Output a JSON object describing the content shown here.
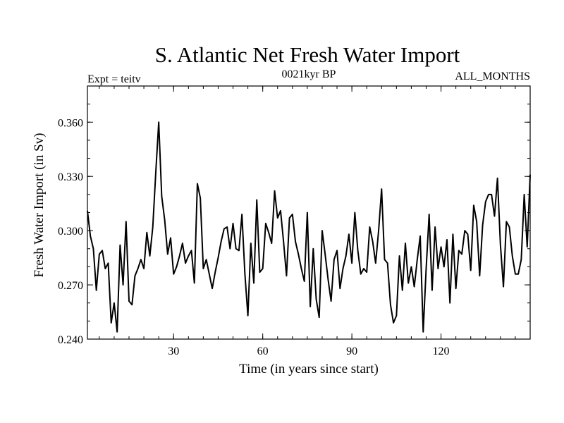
{
  "chart_data": {
    "type": "line",
    "title": "S. Atlantic Net Fresh Water Import",
    "subtitle_left": "Expt = teitv",
    "subtitle_center": "0021kyr BP",
    "subtitle_right": "ALL_MONTHS",
    "xlabel": "Time (in years since start)",
    "ylabel": "Fresh Water Import (in Sv)",
    "xlim": [
      1,
      150
    ],
    "ylim": [
      0.24,
      0.38
    ],
    "x_major_ticks": [
      30,
      60,
      90,
      120
    ],
    "x_minor_step": 5,
    "y_major_ticks": [
      0.24,
      0.27,
      0.3,
      0.33,
      0.36
    ],
    "y_tick_labels": [
      "0.240",
      "0.270",
      "0.300",
      "0.330",
      "0.360"
    ],
    "y_minor_step": 0.01,
    "grid": false,
    "series": [
      {
        "name": "Fresh water import",
        "color": "#000000",
        "x": [
          1,
          2,
          3,
          4,
          5,
          6,
          7,
          8,
          9,
          10,
          11,
          12,
          13,
          14,
          15,
          16,
          17,
          18,
          19,
          20,
          21,
          22,
          23,
          24,
          25,
          26,
          27,
          28,
          29,
          30,
          31,
          32,
          33,
          34,
          35,
          36,
          37,
          38,
          39,
          40,
          41,
          42,
          43,
          44,
          45,
          46,
          47,
          48,
          49,
          50,
          51,
          52,
          53,
          54,
          55,
          56,
          57,
          58,
          59,
          60,
          61,
          62,
          63,
          64,
          65,
          66,
          67,
          68,
          69,
          70,
          71,
          72,
          73,
          74,
          75,
          76,
          77,
          78,
          79,
          80,
          81,
          82,
          83,
          84,
          85,
          86,
          87,
          88,
          89,
          90,
          91,
          92,
          93,
          94,
          95,
          96,
          97,
          98,
          99,
          100,
          101,
          102,
          103,
          104,
          105,
          106,
          107,
          108,
          109,
          110,
          111,
          112,
          113,
          114,
          115,
          116,
          117,
          118,
          119,
          120,
          121,
          122,
          123,
          124,
          125,
          126,
          127,
          128,
          129,
          130,
          131,
          132,
          133,
          134,
          135,
          136,
          137,
          138,
          139,
          140,
          141,
          142,
          143,
          144,
          145,
          146,
          147,
          148,
          149,
          150
        ],
        "values": [
          0.311,
          0.297,
          0.29,
          0.267,
          0.287,
          0.289,
          0.279,
          0.282,
          0.249,
          0.26,
          0.244,
          0.292,
          0.27,
          0.305,
          0.261,
          0.259,
          0.275,
          0.279,
          0.284,
          0.279,
          0.299,
          0.286,
          0.302,
          0.332,
          0.36,
          0.319,
          0.306,
          0.287,
          0.296,
          0.276,
          0.28,
          0.286,
          0.293,
          0.282,
          0.286,
          0.289,
          0.271,
          0.326,
          0.318,
          0.279,
          0.284,
          0.276,
          0.268,
          0.277,
          0.285,
          0.294,
          0.301,
          0.302,
          0.29,
          0.304,
          0.29,
          0.289,
          0.309,
          0.276,
          0.253,
          0.293,
          0.271,
          0.317,
          0.277,
          0.279,
          0.304,
          0.299,
          0.293,
          0.322,
          0.307,
          0.311,
          0.294,
          0.275,
          0.307,
          0.309,
          0.294,
          0.287,
          0.279,
          0.272,
          0.31,
          0.258,
          0.29,
          0.262,
          0.252,
          0.3,
          0.287,
          0.273,
          0.261,
          0.284,
          0.289,
          0.268,
          0.279,
          0.286,
          0.298,
          0.282,
          0.31,
          0.289,
          0.276,
          0.279,
          0.277,
          0.302,
          0.294,
          0.282,
          0.3,
          0.323,
          0.284,
          0.282,
          0.259,
          0.249,
          0.253,
          0.286,
          0.267,
          0.293,
          0.271,
          0.28,
          0.269,
          0.284,
          0.297,
          0.244,
          0.279,
          0.309,
          0.267,
          0.302,
          0.279,
          0.291,
          0.28,
          0.295,
          0.26,
          0.298,
          0.268,
          0.289,
          0.287,
          0.3,
          0.298,
          0.278,
          0.314,
          0.305,
          0.275,
          0.303,
          0.316,
          0.32,
          0.32,
          0.308,
          0.329,
          0.292,
          0.269,
          0.305,
          0.302,
          0.286,
          0.276,
          0.276,
          0.284,
          0.32,
          0.291,
          0.331
        ]
      }
    ]
  }
}
